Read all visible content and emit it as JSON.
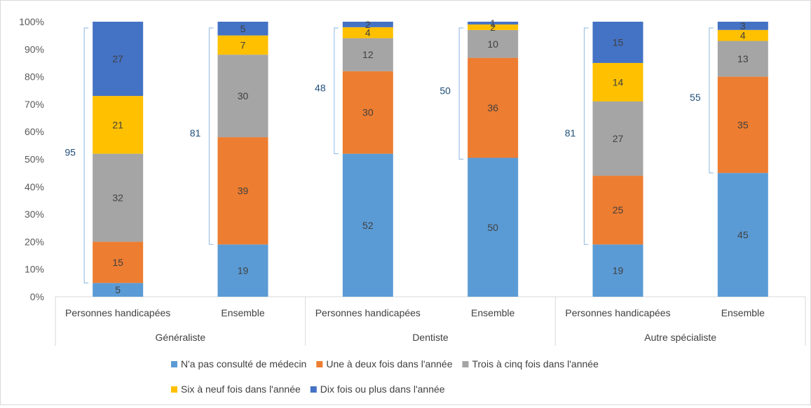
{
  "colors": {
    "n0": "#5b9bd5",
    "n1": "#ed7d31",
    "n2": "#a5a5a5",
    "n3": "#ffc000",
    "n4": "#4472c4",
    "axis": "#d9d9d9",
    "brace": "#9dc3e6"
  },
  "chart_data": {
    "type": "bar",
    "stacked": true,
    "percent_stacked": true,
    "title": "",
    "xlabel": "",
    "ylabel": "",
    "ylim": [
      0,
      100
    ],
    "y_ticks": [
      "0%",
      "10%",
      "20%",
      "30%",
      "40%",
      "50%",
      "60%",
      "70%",
      "80%",
      "90%",
      "100%"
    ],
    "grid": false,
    "legend_position": "bottom",
    "groups": [
      {
        "label": "Généraliste",
        "categories": [
          "Personnes handicapées",
          "Ensemble"
        ]
      },
      {
        "label": "Dentiste",
        "categories": [
          "Personnes handicapées",
          "Ensemble"
        ]
      },
      {
        "label": "Autre spécialiste",
        "categories": [
          "Personnes handicapées",
          "Ensemble"
        ]
      }
    ],
    "categories": [
      "Personnes handicapées",
      "Ensemble",
      "Personnes handicapées",
      "Ensemble",
      "Personnes handicapées",
      "Ensemble"
    ],
    "series": [
      {
        "name": "N'a pas consulté de médecin",
        "color_key": "n0",
        "values": [
          5,
          19,
          52,
          50,
          19,
          45
        ]
      },
      {
        "name": "Une à deux fois dans l'année",
        "color_key": "n1",
        "values": [
          15,
          39,
          30,
          36,
          25,
          35
        ]
      },
      {
        "name": "Trois à cinq fois dans l'année",
        "color_key": "n2",
        "values": [
          32,
          30,
          12,
          10,
          27,
          13
        ]
      },
      {
        "name": "Six à neuf fois dans l'année",
        "color_key": "n3",
        "values": [
          21,
          7,
          4,
          2,
          14,
          4
        ]
      },
      {
        "name": "Dix fois ou plus dans l'année",
        "color_key": "n4",
        "values": [
          27,
          5,
          2,
          1,
          15,
          3
        ]
      }
    ],
    "brace_annotations": [
      95,
      81,
      48,
      50,
      81,
      55
    ]
  }
}
